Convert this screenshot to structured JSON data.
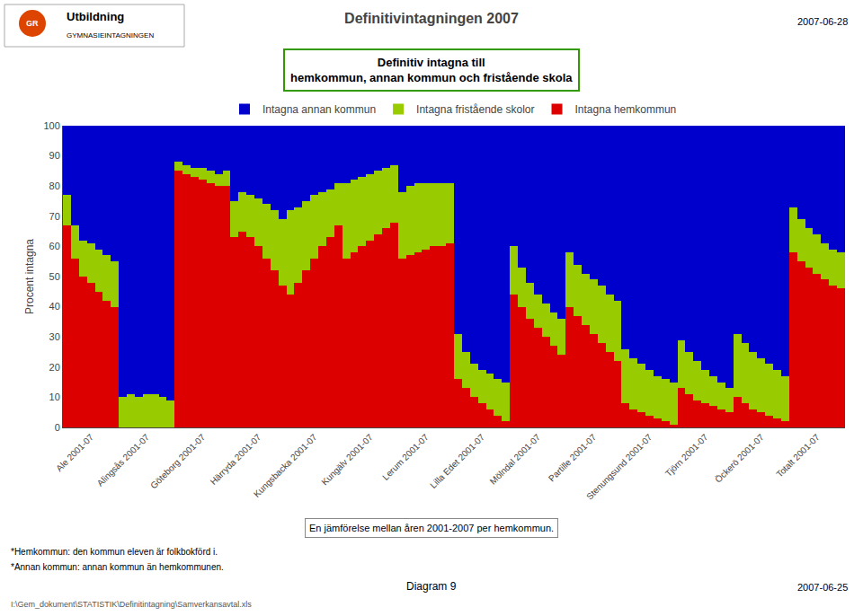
{
  "chart_data": {
    "type": "bar",
    "stacked": true,
    "title": "Definitivintagningen 2007",
    "subtitle": "Definitiv intagna till\nhemkommun, annan kommun och fristående skola",
    "y_label": "Procent intagna",
    "categories": [
      null,
      null,
      null,
      "Ale 2001-07",
      null,
      null,
      null,
      null,
      null,
      null,
      "Alingsås 2001-07",
      null,
      null,
      null,
      null,
      null,
      null,
      "Göteborg 2001-07",
      null,
      null,
      null,
      null,
      null,
      null,
      "Härryda 2001-07",
      null,
      null,
      null,
      null,
      null,
      null,
      "Kungsbacka 2001-07",
      null,
      null,
      null,
      null,
      null,
      null,
      "Kungälv 2001-07",
      null,
      null,
      null,
      null,
      null,
      null,
      "Lerum 2001-07",
      null,
      null,
      null,
      null,
      null,
      null,
      "Lilla Edet 2001-07",
      null,
      null,
      null,
      null,
      null,
      null,
      "Mölndal 2001-07",
      null,
      null,
      null,
      null,
      null,
      null,
      "Partille 2001-07",
      null,
      null,
      null,
      null,
      null,
      null,
      "Stenungsund 2001-07",
      null,
      null,
      null,
      null,
      null,
      null,
      "Tjörn 2001-07",
      null,
      null,
      null,
      null,
      null,
      null,
      "Öckerö 2001-07",
      null,
      null,
      null,
      null,
      null,
      null,
      "Totalt 2001-07",
      null,
      null,
      null
    ],
    "series": [
      {
        "name": "Intagna hemkommun",
        "color": "#dd0000",
        "values": [
          67,
          56,
          50,
          48,
          45,
          42,
          40,
          0,
          0,
          0,
          0,
          0,
          0,
          0,
          85,
          84,
          83,
          82,
          81,
          80,
          80,
          63,
          65,
          63,
          60,
          56,
          52,
          47,
          44,
          48,
          52,
          56,
          60,
          63,
          67,
          56,
          58,
          60,
          62,
          64,
          66,
          68,
          56,
          57,
          58,
          59,
          60,
          60,
          61,
          16,
          13,
          10,
          8,
          6,
          4,
          2,
          44,
          40,
          36,
          33,
          30,
          27,
          24,
          40,
          37,
          34,
          31,
          28,
          25,
          22,
          8,
          6,
          5,
          4,
          3,
          2,
          1,
          13,
          11,
          9,
          8,
          7,
          6,
          5,
          10,
          8,
          6,
          5,
          4,
          3,
          2,
          58,
          55,
          53,
          51,
          49,
          47,
          46
        ]
      },
      {
        "name": "Intagna fristående skolor",
        "color": "#99cc00",
        "values": [
          10,
          11,
          12,
          13,
          14,
          15,
          15,
          10,
          11,
          10,
          11,
          11,
          10,
          9,
          3,
          3,
          3,
          4,
          4,
          4,
          5,
          12,
          13,
          14,
          16,
          18,
          20,
          22,
          28,
          25,
          23,
          21,
          18,
          16,
          14,
          25,
          24,
          23,
          22,
          21,
          20,
          19,
          22,
          23,
          23,
          22,
          21,
          21,
          20,
          15,
          12,
          11,
          11,
          12,
          12,
          13,
          16,
          13,
          12,
          11,
          11,
          11,
          12,
          18,
          17,
          17,
          18,
          19,
          19,
          20,
          18,
          17,
          16,
          15,
          14,
          14,
          14,
          16,
          14,
          13,
          11,
          10,
          9,
          8,
          21,
          20,
          19,
          18,
          17,
          16,
          15,
          15,
          14,
          13,
          13,
          12,
          12,
          12
        ]
      },
      {
        "name": "Intagna annan kommun",
        "color": "#0000cc",
        "values": [
          23,
          33,
          38,
          39,
          41,
          43,
          45,
          90,
          89,
          90,
          89,
          89,
          90,
          91,
          12,
          13,
          14,
          14,
          15,
          16,
          15,
          25,
          22,
          23,
          24,
          26,
          28,
          31,
          28,
          27,
          25,
          23,
          22,
          21,
          19,
          19,
          18,
          17,
          16,
          15,
          14,
          13,
          22,
          20,
          19,
          19,
          19,
          19,
          19,
          69,
          75,
          79,
          81,
          82,
          84,
          85,
          40,
          47,
          52,
          56,
          59,
          62,
          64,
          42,
          46,
          49,
          51,
          53,
          56,
          58,
          74,
          77,
          79,
          81,
          83,
          84,
          85,
          71,
          75,
          78,
          81,
          83,
          85,
          87,
          69,
          72,
          75,
          77,
          79,
          81,
          83,
          27,
          31,
          34,
          36,
          39,
          41,
          42
        ]
      }
    ],
    "ylim": [
      0,
      100
    ],
    "yticks": [
      0,
      10,
      20,
      30,
      40,
      50,
      60,
      70,
      80,
      90,
      100
    ],
    "grid": true,
    "legend": "top",
    "annotations": [
      "2007-06-28",
      "En jämförelse mellan åren 2001-2007 per hemkommun.",
      "*Hemkommun: den kommun eleven är folkbokförd i.",
      "*Annan kommun: annan kommun än hemkommunen.",
      "Diagram 9",
      "I:\\Gem_dokument\\STATISTIK\\Definitintagning\\Samverkansavtal.xls",
      "2007-06-25",
      "GR",
      "Utbildning",
      "GYMNASIEINTAGNINGEN"
    ]
  }
}
